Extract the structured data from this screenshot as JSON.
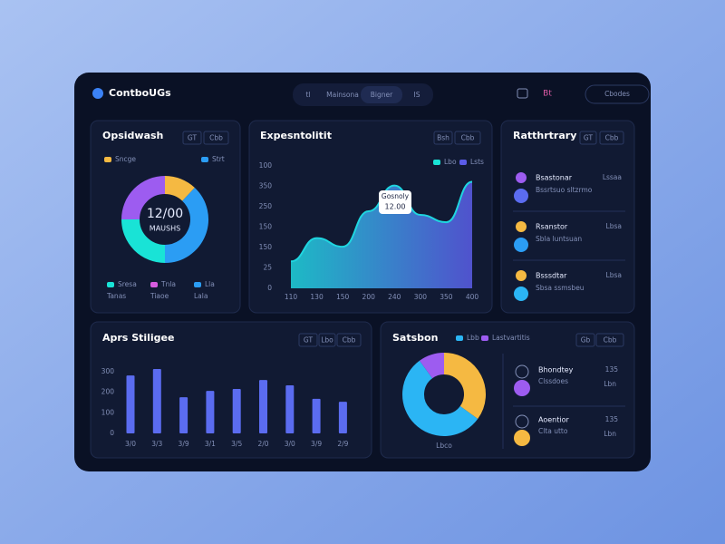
{
  "header": {
    "brand": "ContboUGs",
    "tabs": [
      "tl",
      "Mainsona",
      "Bigner",
      "IS"
    ],
    "badge": "Bt",
    "button": "Cbodes"
  },
  "overview": {
    "title": "Opsidwash",
    "buttons": [
      "GT",
      "Cbb"
    ],
    "legend_top": [
      {
        "label": "Sncge",
        "color": "#f5b942"
      },
      {
        "label": "Strt",
        "color": "#2b9df4"
      }
    ],
    "center_value": "12/00",
    "center_label": "MAUSHS",
    "donut": {
      "type": "pie",
      "values": [
        12,
        38,
        25,
        25
      ],
      "colors": [
        "#f5b942",
        "#2b9df4",
        "#19e3d6",
        "#9d5cf0"
      ]
    },
    "legend": [
      {
        "label": "Sresa",
        "sub": "Tanas",
        "color": "#19e3d6"
      },
      {
        "label": "Tnla",
        "sub": "Tiaoe",
        "color": "#d75ce0"
      },
      {
        "label": "Lla",
        "sub": "Lala",
        "color": "#2b9df4"
      }
    ]
  },
  "expenses": {
    "title": "Expesntolitit",
    "buttons": [
      "Bsh",
      "Cbb"
    ],
    "legend": [
      {
        "label": "Lbo",
        "color": "#19e3d6"
      },
      {
        "label": "Lsts",
        "color": "#5b5ce8"
      }
    ],
    "axis_labels": [
      "100",
      "350",
      "250",
      "150",
      "150",
      "25",
      "0"
    ],
    "chart": {
      "type": "area",
      "categories": [
        "110",
        "130",
        "150",
        "200",
        "240",
        "300",
        "350",
        "400"
      ],
      "values": [
        22,
        41,
        34,
        63,
        84,
        60,
        54,
        87
      ],
      "ylim": [
        0,
        100
      ],
      "colors": [
        "#1fd6e0",
        "#5b5ce8"
      ]
    },
    "tooltip": {
      "title": "Gosnoly",
      "value": "12.00"
    }
  },
  "activity": {
    "title": "Ratthrtrary",
    "buttons": [
      "GT",
      "Cbb"
    ],
    "items": [
      {
        "name": "Bsastonar",
        "meta": "Lssaa",
        "detail": "Bssrtsuo sltzrmo",
        "colors": [
          "#9d5cf0",
          "#5b6cf0"
        ]
      },
      {
        "name": "Rsanstor",
        "meta": "Lbsa",
        "detail": "Sbla luntsuan",
        "colors": [
          "#f5b942",
          "#2b9df4"
        ]
      },
      {
        "name": "Bsssdtar",
        "meta": "Lbsa",
        "detail": "Sbsa ssmsbeu",
        "colors": [
          "#f5b942",
          "#2bb5f4"
        ]
      }
    ]
  },
  "bars": {
    "title": "Aprs Stiligee",
    "buttons": [
      "GT",
      "Lbo",
      "Cbb"
    ],
    "chart": {
      "type": "bar",
      "categories": [
        "3/0",
        "3/3",
        "3/9",
        "3/1",
        "3/5",
        "2/0",
        "3/0",
        "3/9",
        "2/9"
      ],
      "values": [
        282,
        313,
        176,
        207,
        216,
        260,
        234,
        168,
        154
      ],
      "ylim": [
        0,
        300
      ],
      "yticks": [
        0,
        100,
        200,
        300
      ],
      "color": "#5b6cf0"
    }
  },
  "status": {
    "title": "Satsbon",
    "buttons": [
      "Gb",
      "Cbb"
    ],
    "legend": [
      {
        "label": "Lbb",
        "color": "#2bb5f4"
      },
      {
        "label": "Lastvartitis",
        "color": "#9d5cf0"
      }
    ],
    "donut": {
      "type": "pie",
      "values": [
        35,
        55,
        10
      ],
      "colors": [
        "#f5b942",
        "#2bb5f4",
        "#9d5cf0"
      ]
    },
    "caption": "Lbco",
    "items": [
      {
        "name": "Bhondtey",
        "detail": "Clssdoes",
        "value": "135",
        "meta": "Lbn",
        "color": "#9d5cf0"
      },
      {
        "name": "Aoentior",
        "detail": "Clta utto",
        "value": "135",
        "meta": "Lbn",
        "color": "#f5b942"
      }
    ]
  }
}
